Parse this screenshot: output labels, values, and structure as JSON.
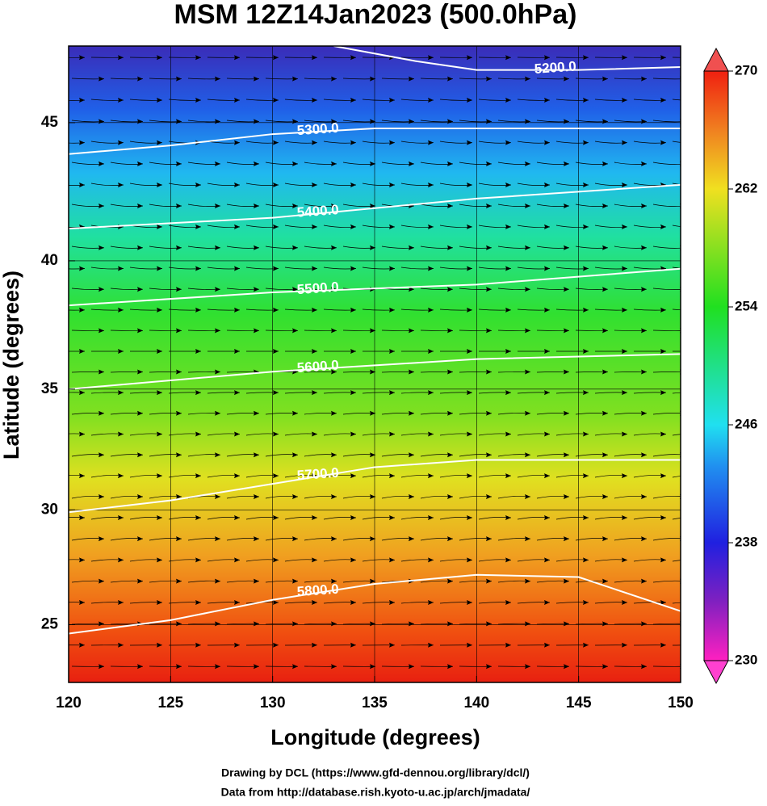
{
  "chart_data": {
    "type": "map",
    "title": "MSM 12Z14Jan2023 (500.0hPa)",
    "xlabel": "Longitude (degrees)",
    "ylabel": "Latitude  (degrees)",
    "projection": "mercator",
    "xlim": [
      120,
      150
    ],
    "ylim": [
      22.4,
      47.6
    ],
    "xticks": [
      120,
      125,
      130,
      135,
      140,
      145,
      150
    ],
    "yticks": [
      25,
      30,
      35,
      40,
      45
    ],
    "grid": true,
    "contours": [
      {
        "value": 5200,
        "label": "5200.0",
        "lon": [
          133,
          137,
          140,
          145,
          150
        ],
        "lat": [
          47.6,
          47.1,
          46.8,
          46.8,
          46.9
        ]
      },
      {
        "value": 5300,
        "label": "5300.0",
        "lon": [
          120,
          125,
          130,
          135,
          140,
          150
        ],
        "lat": [
          43.9,
          44.2,
          44.6,
          44.8,
          44.8,
          44.8
        ]
      },
      {
        "value": 5400,
        "label": "5400.0",
        "lon": [
          120,
          130,
          140,
          150
        ],
        "lat": [
          41.2,
          41.6,
          42.3,
          42.8
        ]
      },
      {
        "value": 5500,
        "label": "5500.0",
        "lon": [
          120,
          130,
          140,
          150
        ],
        "lat": [
          38.3,
          38.8,
          39.1,
          39.7
        ]
      },
      {
        "value": 5600,
        "label": "5600.0",
        "lon": [
          120,
          130,
          140,
          150
        ],
        "lat": [
          35,
          35.7,
          36.2,
          36.4
        ]
      },
      {
        "value": 5700,
        "label": "5700.0",
        "lon": [
          120,
          125,
          130,
          135,
          140,
          150
        ],
        "lat": [
          29.9,
          30.4,
          31.1,
          31.8,
          32.1,
          32.1
        ]
      },
      {
        "value": 5800,
        "label": "5800.0",
        "lon": [
          120,
          125,
          130,
          135,
          140,
          145,
          150
        ],
        "lat": [
          24.6,
          25.2,
          26.1,
          26.8,
          27.2,
          27.1,
          25.6
        ]
      }
    ],
    "colorbar": {
      "lim": [
        230,
        270
      ],
      "ticks": [
        230,
        238,
        246,
        254,
        262,
        270
      ]
    },
    "footer": [
      "Drawing by DCL (https://www.gfd-dennou.org/library/dcl/)",
      "Data from http://database.rish.kyoto-u.ac.jp/arch/jmadata/"
    ]
  }
}
